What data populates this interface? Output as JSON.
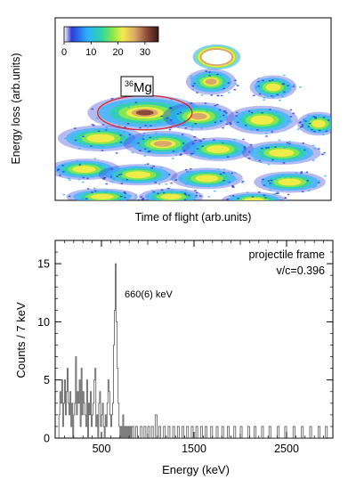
{
  "chart_data": [
    {
      "type": "heatmap",
      "title": "",
      "xlabel": "Time of flight (arb.units)",
      "ylabel": "Energy loss (arb.units)",
      "colorbar": {
        "ticks": [
          "0",
          "10",
          "20",
          "30"
        ],
        "range": [
          0,
          35
        ],
        "colors": [
          "#ffffff",
          "#2b3bd6",
          "#2bb3ff",
          "#2fd6a0",
          "#8ee84a",
          "#f4ec4a",
          "#d9a86a",
          "#8b4a3a",
          "#3a1a16"
        ]
      },
      "annotation": {
        "label": "36Mg",
        "mass": "36",
        "element": "Mg",
        "highlight_color": "#d62a2a"
      },
      "blobs": [
        {
          "id": "ring",
          "x": 0.585,
          "y": 0.215,
          "rx": 0.075,
          "ry": 0.06,
          "kind": "ring"
        },
        {
          "id": "b1",
          "x": 0.565,
          "y": 0.35,
          "rx": 0.07,
          "ry": 0.055,
          "peak": 26
        },
        {
          "id": "b2",
          "x": 0.79,
          "y": 0.38,
          "rx": 0.065,
          "ry": 0.05,
          "peak": 20
        },
        {
          "id": "mg36",
          "x": 0.325,
          "y": 0.52,
          "rx": 0.16,
          "ry": 0.075,
          "peak": 34
        },
        {
          "id": "b3",
          "x": 0.52,
          "y": 0.54,
          "rx": 0.1,
          "ry": 0.06,
          "peak": 24
        },
        {
          "id": "b4",
          "x": 0.75,
          "y": 0.56,
          "rx": 0.1,
          "ry": 0.06,
          "peak": 20
        },
        {
          "id": "b5",
          "x": 0.955,
          "y": 0.58,
          "rx": 0.06,
          "ry": 0.05,
          "peak": 16
        },
        {
          "id": "b6",
          "x": 0.165,
          "y": 0.66,
          "rx": 0.12,
          "ry": 0.055,
          "peak": 22
        },
        {
          "id": "b7",
          "x": 0.39,
          "y": 0.69,
          "rx": 0.11,
          "ry": 0.055,
          "peak": 24
        },
        {
          "id": "b8",
          "x": 0.59,
          "y": 0.72,
          "rx": 0.1,
          "ry": 0.05,
          "peak": 22
        },
        {
          "id": "b9",
          "x": 0.82,
          "y": 0.74,
          "rx": 0.11,
          "ry": 0.05,
          "peak": 18
        },
        {
          "id": "b10",
          "x": 0.105,
          "y": 0.83,
          "rx": 0.1,
          "ry": 0.045,
          "peak": 16
        },
        {
          "id": "b11",
          "x": 0.3,
          "y": 0.86,
          "rx": 0.11,
          "ry": 0.045,
          "peak": 18
        },
        {
          "id": "b12",
          "x": 0.55,
          "y": 0.88,
          "rx": 0.1,
          "ry": 0.045,
          "peak": 16
        },
        {
          "id": "b13",
          "x": 0.85,
          "y": 0.9,
          "rx": 0.1,
          "ry": 0.045,
          "peak": 14
        },
        {
          "id": "b14",
          "x": 0.17,
          "y": 0.98,
          "rx": 0.1,
          "ry": 0.035,
          "peak": 12
        },
        {
          "id": "b15",
          "x": 0.42,
          "y": 0.98,
          "rx": 0.09,
          "ry": 0.035,
          "peak": 12
        },
        {
          "id": "b16",
          "x": 0.72,
          "y": 1.0,
          "rx": 0.09,
          "ry": 0.035,
          "peak": 10
        }
      ]
    },
    {
      "type": "histogram",
      "title": "",
      "xlabel": "Energy (keV)",
      "ylabel": "Counts / 7 keV",
      "xlim": [
        0,
        3000
      ],
      "ylim": [
        0,
        17
      ],
      "xticks": [
        500,
        1500,
        2500
      ],
      "xtick_labels": [
        "500",
        "1500",
        "2500"
      ],
      "yticks": [
        0,
        5,
        10,
        15
      ],
      "ytick_labels": [
        "0",
        "5",
        "10",
        "15"
      ],
      "bin_width": 7,
      "annotations": {
        "frame": "projectile frame",
        "velocity": "v/c=0.396",
        "peak_label": "660(6) keV"
      },
      "counts": [
        [
          0,
          0
        ],
        [
          40,
          2
        ],
        [
          50,
          4
        ],
        [
          60,
          3
        ],
        [
          70,
          5
        ],
        [
          80,
          1
        ],
        [
          90,
          3
        ],
        [
          100,
          5
        ],
        [
          110,
          2
        ],
        [
          120,
          4
        ],
        [
          130,
          6
        ],
        [
          140,
          3
        ],
        [
          150,
          2
        ],
        [
          160,
          4
        ],
        [
          170,
          1
        ],
        [
          180,
          3
        ],
        [
          190,
          0
        ],
        [
          200,
          2
        ],
        [
          210,
          3
        ],
        [
          220,
          7
        ],
        [
          230,
          2
        ],
        [
          240,
          4
        ],
        [
          250,
          3
        ],
        [
          260,
          5
        ],
        [
          270,
          1
        ],
        [
          280,
          6
        ],
        [
          290,
          2
        ],
        [
          300,
          4
        ],
        [
          310,
          3
        ],
        [
          320,
          2
        ],
        [
          330,
          1
        ],
        [
          340,
          5
        ],
        [
          350,
          0
        ],
        [
          360,
          3
        ],
        [
          370,
          2
        ],
        [
          380,
          4
        ],
        [
          390,
          1
        ],
        [
          400,
          2
        ],
        [
          410,
          3
        ],
        [
          420,
          5
        ],
        [
          430,
          6
        ],
        [
          440,
          1
        ],
        [
          450,
          2
        ],
        [
          460,
          0
        ],
        [
          470,
          3
        ],
        [
          480,
          4
        ],
        [
          490,
          1
        ],
        [
          500,
          2
        ],
        [
          510,
          3
        ],
        [
          520,
          1
        ],
        [
          530,
          0
        ],
        [
          540,
          2
        ],
        [
          550,
          1
        ],
        [
          560,
          3
        ],
        [
          570,
          5
        ],
        [
          580,
          4
        ],
        [
          590,
          2
        ],
        [
          600,
          1
        ],
        [
          610,
          2
        ],
        [
          620,
          3
        ],
        [
          630,
          8
        ],
        [
          640,
          11
        ],
        [
          650,
          15
        ],
        [
          660,
          10
        ],
        [
          670,
          6
        ],
        [
          680,
          3
        ],
        [
          690,
          1
        ],
        [
          700,
          0
        ],
        [
          710,
          1
        ],
        [
          720,
          0
        ],
        [
          730,
          2
        ],
        [
          740,
          0
        ],
        [
          750,
          1
        ],
        [
          760,
          0
        ],
        [
          770,
          1
        ],
        [
          780,
          0
        ],
        [
          790,
          1
        ],
        [
          800,
          0
        ],
        [
          810,
          1
        ],
        [
          820,
          0
        ],
        [
          830,
          1
        ],
        [
          850,
          0
        ],
        [
          870,
          1
        ],
        [
          890,
          0
        ],
        [
          920,
          1
        ],
        [
          940,
          0
        ],
        [
          960,
          1
        ],
        [
          980,
          0
        ],
        [
          1000,
          1
        ],
        [
          1020,
          0
        ],
        [
          1040,
          1
        ],
        [
          1060,
          0
        ],
        [
          1080,
          2
        ],
        [
          1100,
          0
        ],
        [
          1120,
          1
        ],
        [
          1140,
          0
        ],
        [
          1170,
          1
        ],
        [
          1190,
          0
        ],
        [
          1220,
          1
        ],
        [
          1240,
          0
        ],
        [
          1270,
          1
        ],
        [
          1290,
          0
        ],
        [
          1320,
          1
        ],
        [
          1340,
          0
        ],
        [
          1370,
          1
        ],
        [
          1390,
          0
        ],
        [
          1420,
          1
        ],
        [
          1440,
          0
        ],
        [
          1470,
          1
        ],
        [
          1490,
          0
        ],
        [
          1520,
          1
        ],
        [
          1540,
          0
        ],
        [
          1570,
          1
        ],
        [
          1590,
          0
        ],
        [
          1620,
          1
        ],
        [
          1640,
          0
        ],
        [
          1680,
          1
        ],
        [
          1700,
          0
        ],
        [
          1740,
          1
        ],
        [
          1760,
          0
        ],
        [
          1800,
          1
        ],
        [
          1820,
          0
        ],
        [
          1860,
          1
        ],
        [
          1880,
          0
        ],
        [
          1930,
          1
        ],
        [
          1950,
          0
        ],
        [
          2000,
          1
        ],
        [
          2020,
          0
        ],
        [
          2080,
          1
        ],
        [
          2100,
          0
        ],
        [
          2150,
          1
        ],
        [
          2170,
          0
        ],
        [
          2230,
          1
        ],
        [
          2250,
          0
        ],
        [
          2310,
          1
        ],
        [
          2330,
          0
        ],
        [
          2400,
          1
        ],
        [
          2420,
          0
        ],
        [
          2480,
          1
        ],
        [
          2500,
          0
        ],
        [
          2570,
          1
        ],
        [
          2590,
          0
        ],
        [
          2660,
          1
        ],
        [
          2680,
          0
        ],
        [
          2750,
          1
        ],
        [
          2770,
          0
        ],
        [
          2840,
          1
        ],
        [
          2860,
          0
        ],
        [
          2920,
          1
        ],
        [
          2940,
          0
        ],
        [
          3000,
          0
        ]
      ]
    }
  ]
}
